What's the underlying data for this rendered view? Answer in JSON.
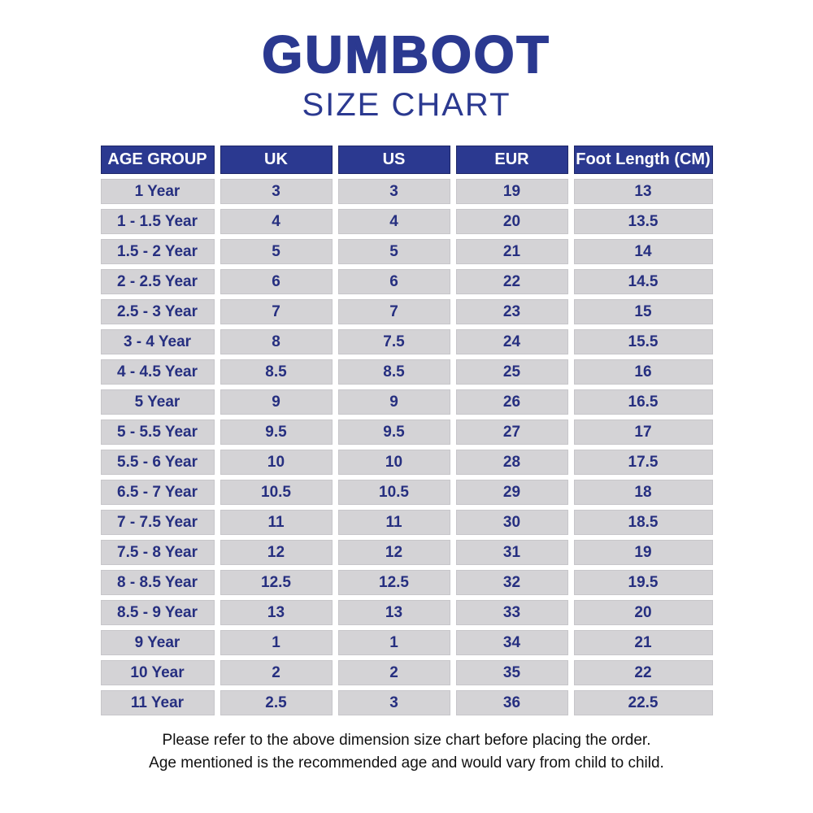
{
  "page": {
    "title": "GUMBOOT",
    "subtitle": "SIZE CHART",
    "footer_line1": "Please refer to the above dimension size chart before placing the order.",
    "footer_line2": "Age mentioned is the recommended age and would vary from child to child."
  },
  "colors": {
    "navy": "#2b3990",
    "cell_text_navy": "#262f80",
    "cell_gray": "#d4d3d6",
    "header_text": "#ffffff",
    "footer_text": "#111111",
    "background": "#ffffff"
  },
  "table": {
    "columns": [
      "AGE GROUP",
      "UK",
      "US",
      "EUR",
      "Foot Length (CM)"
    ],
    "rows": [
      [
        "1 Year",
        "3",
        "3",
        "19",
        "13"
      ],
      [
        "1 - 1.5 Year",
        "4",
        "4",
        "20",
        "13.5"
      ],
      [
        "1.5 - 2 Year",
        "5",
        "5",
        "21",
        "14"
      ],
      [
        "2 - 2.5 Year",
        "6",
        "6",
        "22",
        "14.5"
      ],
      [
        "2.5 - 3 Year",
        "7",
        "7",
        "23",
        "15"
      ],
      [
        "3 - 4 Year",
        "8",
        "7.5",
        "24",
        "15.5"
      ],
      [
        "4 - 4.5 Year",
        "8.5",
        "8.5",
        "25",
        "16"
      ],
      [
        "5 Year",
        "9",
        "9",
        "26",
        "16.5"
      ],
      [
        "5 - 5.5 Year",
        "9.5",
        "9.5",
        "27",
        "17"
      ],
      [
        "5.5 - 6 Year",
        "10",
        "10",
        "28",
        "17.5"
      ],
      [
        "6.5 - 7 Year",
        "10.5",
        "10.5",
        "29",
        "18"
      ],
      [
        "7 - 7.5 Year",
        "11",
        "11",
        "30",
        "18.5"
      ],
      [
        "7.5 - 8 Year",
        "12",
        "12",
        "31",
        "19"
      ],
      [
        "8 - 8.5 Year",
        "12.5",
        "12.5",
        "32",
        "19.5"
      ],
      [
        "8.5 - 9 Year",
        "13",
        "13",
        "33",
        "20"
      ],
      [
        "9 Year",
        "1",
        "1",
        "34",
        "21"
      ],
      [
        "10 Year",
        "2",
        "2",
        "35",
        "22"
      ],
      [
        "11 Year",
        "2.5",
        "3",
        "36",
        "22.5"
      ]
    ]
  }
}
